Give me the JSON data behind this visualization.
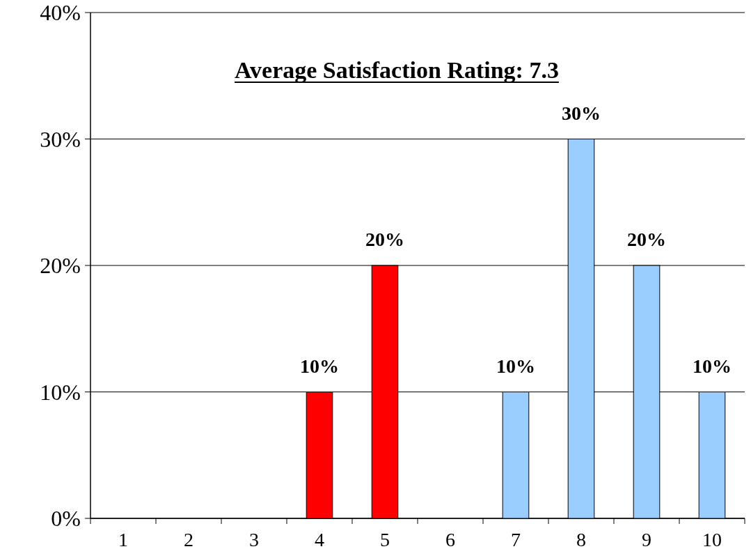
{
  "chart_data": {
    "type": "bar",
    "title": "Average Satisfaction Rating: 7.3",
    "categories": [
      "1",
      "2",
      "3",
      "4",
      "5",
      "6",
      "7",
      "8",
      "9",
      "10"
    ],
    "values": [
      0,
      0,
      0,
      10,
      20,
      0,
      10,
      30,
      20,
      10
    ],
    "colors": [
      "#99ccff",
      "#99ccff",
      "#99ccff",
      "#ff0000",
      "#ff0000",
      "#99ccff",
      "#99ccff",
      "#99ccff",
      "#99ccff",
      "#99ccff"
    ],
    "value_labels": [
      null,
      null,
      null,
      "10%",
      "20%",
      null,
      "10%",
      "30%",
      "20%",
      "10%"
    ],
    "ylim": [
      0,
      40
    ],
    "yticks": [
      {
        "value": 0,
        "label": "0%"
      },
      {
        "value": 10,
        "label": "10%"
      },
      {
        "value": 20,
        "label": "20%"
      },
      {
        "value": 30,
        "label": "30%"
      },
      {
        "value": 40,
        "label": "40%"
      }
    ],
    "grid": "y"
  }
}
